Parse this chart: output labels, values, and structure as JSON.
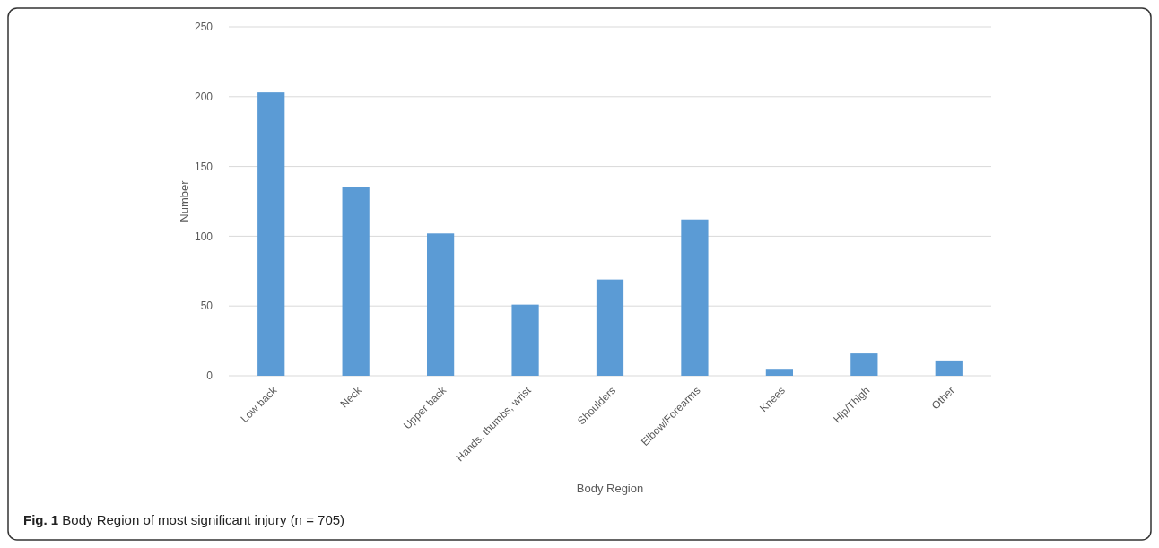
{
  "chart_data": {
    "type": "bar",
    "categories": [
      "Low back",
      "Neck",
      "Upper back",
      "Hands, thumbs, wrist",
      "Shoulders",
      "Elbow/Forearms",
      "Knees",
      "Hip/Thigh",
      "Other"
    ],
    "values": [
      203,
      135,
      102,
      51,
      69,
      112,
      5,
      16,
      11
    ],
    "color": "#5b9bd5",
    "xlabel": "Body Region",
    "ylabel": "Number",
    "ylim": [
      0,
      250
    ],
    "yticks": [
      0,
      50,
      100,
      150,
      200,
      250
    ],
    "grid": "y",
    "annotations": [
      "Fig. 1 Body Region of most significant injury (n = 705)"
    ]
  }
}
